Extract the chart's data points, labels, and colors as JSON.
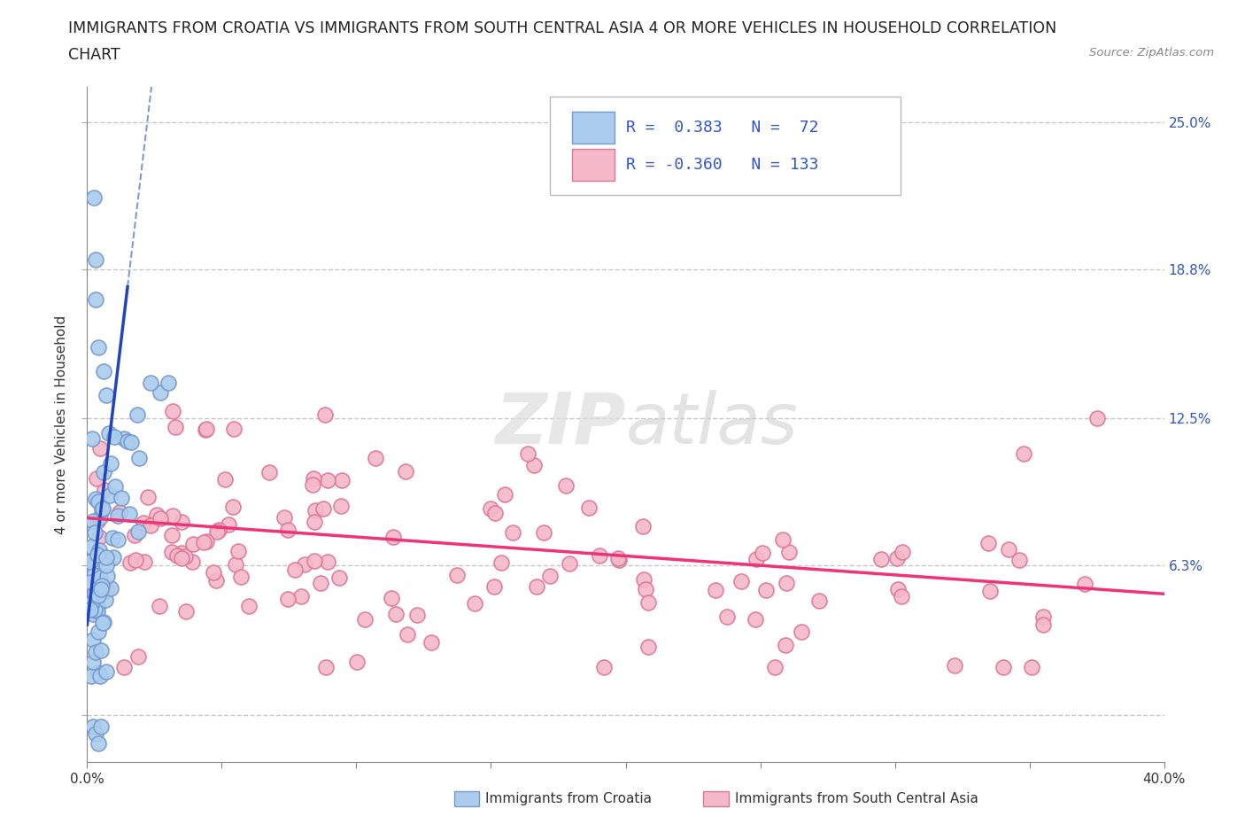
{
  "title_line1": "IMMIGRANTS FROM CROATIA VS IMMIGRANTS FROM SOUTH CENTRAL ASIA 4 OR MORE VEHICLES IN HOUSEHOLD CORRELATION",
  "title_line2": "CHART",
  "source_text": "Source: ZipAtlas.com",
  "ylabel": "4 or more Vehicles in Household",
  "xlim": [
    0.0,
    0.4
  ],
  "ylim": [
    -0.02,
    0.265
  ],
  "xticks": [
    0.0,
    0.05,
    0.1,
    0.15,
    0.2,
    0.25,
    0.3,
    0.35,
    0.4
  ],
  "yticks_right": [
    0.0,
    0.063,
    0.125,
    0.188,
    0.25
  ],
  "ytick_labels_right": [
    "",
    "6.3%",
    "12.5%",
    "18.8%",
    "25.0%"
  ],
  "grid_color": "#c8c8c8",
  "background_color": "#ffffff",
  "croatia_color": "#aaccee",
  "croatia_edge_color": "#7799cc",
  "sca_color": "#f5b8c8",
  "sca_edge_color": "#dd7799",
  "croatia_line_color": "#2244bb",
  "sca_line_color": "#ee3377",
  "legend_label_croatia": "Immigrants from Croatia",
  "legend_label_sca": "Immigrants from South Central Asia",
  "watermark_zip": "ZIP",
  "watermark_atlas": "atlas",
  "R_croatia": 0.383,
  "N_croatia": 72,
  "R_sca": -0.36,
  "N_sca": 133,
  "title_fontsize": 12.5,
  "axis_fontsize": 11,
  "tick_fontsize": 11,
  "right_tick_color": "#3355bb"
}
